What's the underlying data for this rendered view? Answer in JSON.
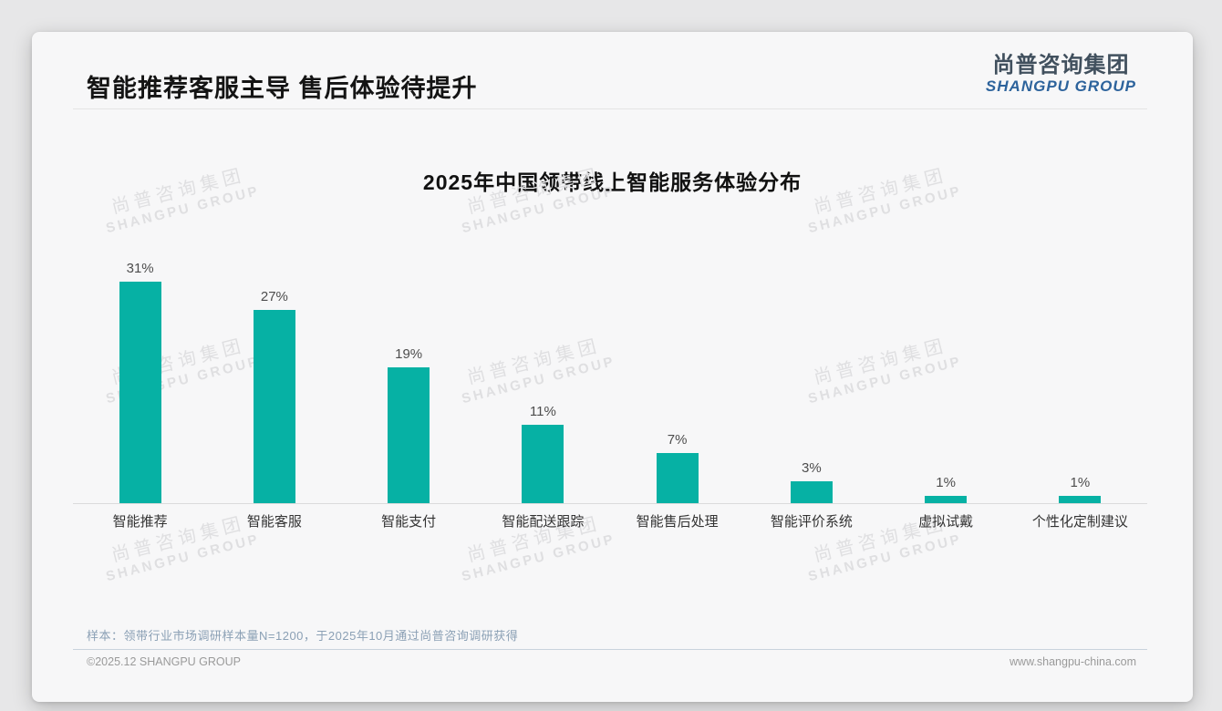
{
  "header": {
    "title": "智能推荐客服主导 售后体验待提升"
  },
  "logo": {
    "chinese": "尚普咨询集团",
    "english": "SHANGPU GROUP"
  },
  "watermark": {
    "line1": "尚普咨询集团",
    "line2": "SHANGPU GROUP"
  },
  "chart_data": {
    "type": "bar",
    "title": "2025年中国领带线上智能服务体验分布",
    "categories": [
      "智能推荐",
      "智能客服",
      "智能支付",
      "智能配送跟踪",
      "智能售后处理",
      "智能评价系统",
      "虚拟试戴",
      "个性化定制建议"
    ],
    "values": [
      31,
      27,
      19,
      11,
      7,
      3,
      1,
      1
    ],
    "value_labels": [
      "31%",
      "27%",
      "19%",
      "11%",
      "7%",
      "3%",
      "1%",
      "1%"
    ],
    "value_unit": "%",
    "bar_color": "#06b1a4",
    "xlabel": "",
    "ylabel": "",
    "grid": false,
    "legend": "none"
  },
  "footnote": "样本：领带行业市场调研样本量N=1200，于2025年10月通过尚普咨询调研获得",
  "footer": {
    "copyright": "©2025.12 SHANGPU GROUP",
    "website": "www.shangpu-china.com"
  },
  "colors": {
    "bar": "#06b1a4",
    "logo_blue": "#2d639c",
    "note_blue": "#8ba0b5"
  }
}
